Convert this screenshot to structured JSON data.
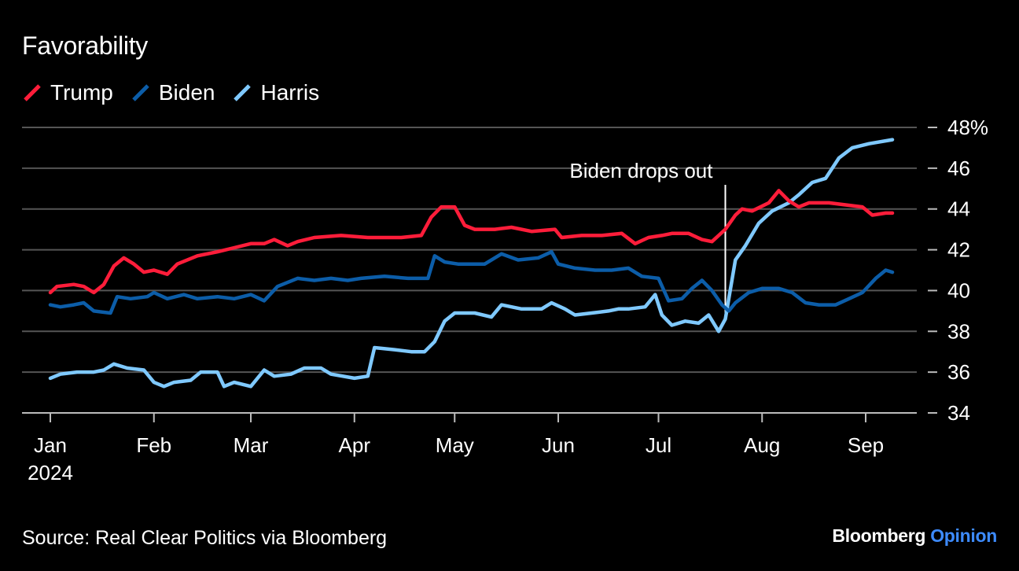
{
  "header": {
    "title": "Favorability"
  },
  "footer": {
    "source": "Source: Real Clear Politics via Bloomberg",
    "brand_main": "Bloomberg",
    "brand_accent": "Opinion"
  },
  "colors": {
    "Trump": "#ff1d3a",
    "Biden": "#0c5da8",
    "Harris": "#7fc9ff",
    "grid": "#555555"
  },
  "chart_data": {
    "type": "line",
    "title": "Favorability",
    "xlabel": "",
    "ylabel": "",
    "ylim": [
      34,
      48
    ],
    "yticks": [
      34,
      36,
      38,
      40,
      42,
      44,
      46,
      48
    ],
    "ytick_labels": [
      "34",
      "36",
      "38",
      "40",
      "42",
      "44",
      "46",
      "48%"
    ],
    "xlim": [
      "2024-01-01",
      "2024-09-20"
    ],
    "xticks": [
      {
        "date": "2024-01-01",
        "label": "Jan",
        "sublabel": "2024"
      },
      {
        "date": "2024-02-01",
        "label": "Feb",
        "sublabel": ""
      },
      {
        "date": "2024-03-01",
        "label": "Mar",
        "sublabel": ""
      },
      {
        "date": "2024-04-01",
        "label": "Apr",
        "sublabel": ""
      },
      {
        "date": "2024-05-01",
        "label": "May",
        "sublabel": ""
      },
      {
        "date": "2024-06-01",
        "label": "Jun",
        "sublabel": ""
      },
      {
        "date": "2024-07-01",
        "label": "Jul",
        "sublabel": ""
      },
      {
        "date": "2024-08-01",
        "label": "Aug",
        "sublabel": ""
      },
      {
        "date": "2024-09-01",
        "label": "Sep",
        "sublabel": ""
      }
    ],
    "grid": true,
    "legend": "top-left",
    "annotation": {
      "date": "2024-07-21",
      "text": "Biden drops out"
    },
    "series": [
      {
        "name": "Trump",
        "points": [
          [
            "2024-01-01",
            39.9
          ],
          [
            "2024-01-03",
            40.2
          ],
          [
            "2024-01-08",
            40.3
          ],
          [
            "2024-01-11",
            40.2
          ],
          [
            "2024-01-14",
            39.9
          ],
          [
            "2024-01-17",
            40.3
          ],
          [
            "2024-01-20",
            41.2
          ],
          [
            "2024-01-23",
            41.6
          ],
          [
            "2024-01-26",
            41.3
          ],
          [
            "2024-01-29",
            40.9
          ],
          [
            "2024-02-01",
            41.0
          ],
          [
            "2024-02-05",
            40.8
          ],
          [
            "2024-02-08",
            41.3
          ],
          [
            "2024-02-14",
            41.7
          ],
          [
            "2024-02-20",
            41.9
          ],
          [
            "2024-02-25",
            42.1
          ],
          [
            "2024-03-01",
            42.3
          ],
          [
            "2024-03-05",
            42.3
          ],
          [
            "2024-03-08",
            42.5
          ],
          [
            "2024-03-12",
            42.2
          ],
          [
            "2024-03-15",
            42.4
          ],
          [
            "2024-03-20",
            42.6
          ],
          [
            "2024-03-28",
            42.7
          ],
          [
            "2024-04-05",
            42.6
          ],
          [
            "2024-04-15",
            42.6
          ],
          [
            "2024-04-21",
            42.7
          ],
          [
            "2024-04-24",
            43.6
          ],
          [
            "2024-04-27",
            44.1
          ],
          [
            "2024-05-01",
            44.1
          ],
          [
            "2024-05-04",
            43.2
          ],
          [
            "2024-05-07",
            43.0
          ],
          [
            "2024-05-13",
            43.0
          ],
          [
            "2024-05-18",
            43.1
          ],
          [
            "2024-05-24",
            42.9
          ],
          [
            "2024-05-31",
            43.0
          ],
          [
            "2024-06-02",
            42.6
          ],
          [
            "2024-06-08",
            42.7
          ],
          [
            "2024-06-14",
            42.7
          ],
          [
            "2024-06-20",
            42.8
          ],
          [
            "2024-06-24",
            42.3
          ],
          [
            "2024-06-28",
            42.6
          ],
          [
            "2024-07-02",
            42.7
          ],
          [
            "2024-07-05",
            42.8
          ],
          [
            "2024-07-10",
            42.8
          ],
          [
            "2024-07-14",
            42.5
          ],
          [
            "2024-07-17",
            42.4
          ],
          [
            "2024-07-21",
            43.0
          ],
          [
            "2024-07-24",
            43.7
          ],
          [
            "2024-07-26",
            44.0
          ],
          [
            "2024-07-29",
            43.9
          ],
          [
            "2024-08-03",
            44.3
          ],
          [
            "2024-08-06",
            44.9
          ],
          [
            "2024-08-09",
            44.4
          ],
          [
            "2024-08-12",
            44.1
          ],
          [
            "2024-08-15",
            44.3
          ],
          [
            "2024-08-21",
            44.3
          ],
          [
            "2024-08-26",
            44.2
          ],
          [
            "2024-08-31",
            44.1
          ],
          [
            "2024-09-03",
            43.7
          ],
          [
            "2024-09-07",
            43.8
          ],
          [
            "2024-09-09",
            43.8
          ]
        ]
      },
      {
        "name": "Biden",
        "points": [
          [
            "2024-01-01",
            39.3
          ],
          [
            "2024-01-04",
            39.2
          ],
          [
            "2024-01-08",
            39.3
          ],
          [
            "2024-01-11",
            39.4
          ],
          [
            "2024-01-14",
            39.0
          ],
          [
            "2024-01-19",
            38.9
          ],
          [
            "2024-01-21",
            39.7
          ],
          [
            "2024-01-25",
            39.6
          ],
          [
            "2024-01-30",
            39.7
          ],
          [
            "2024-02-01",
            39.9
          ],
          [
            "2024-02-05",
            39.6
          ],
          [
            "2024-02-10",
            39.8
          ],
          [
            "2024-02-14",
            39.6
          ],
          [
            "2024-02-20",
            39.7
          ],
          [
            "2024-02-25",
            39.6
          ],
          [
            "2024-03-01",
            39.8
          ],
          [
            "2024-03-05",
            39.5
          ],
          [
            "2024-03-09",
            40.2
          ],
          [
            "2024-03-15",
            40.6
          ],
          [
            "2024-03-20",
            40.5
          ],
          [
            "2024-03-25",
            40.6
          ],
          [
            "2024-03-30",
            40.5
          ],
          [
            "2024-04-03",
            40.6
          ],
          [
            "2024-04-10",
            40.7
          ],
          [
            "2024-04-17",
            40.6
          ],
          [
            "2024-04-23",
            40.6
          ],
          [
            "2024-04-25",
            41.7
          ],
          [
            "2024-04-28",
            41.4
          ],
          [
            "2024-05-02",
            41.3
          ],
          [
            "2024-05-10",
            41.3
          ],
          [
            "2024-05-15",
            41.8
          ],
          [
            "2024-05-20",
            41.5
          ],
          [
            "2024-05-26",
            41.6
          ],
          [
            "2024-05-30",
            41.9
          ],
          [
            "2024-06-01",
            41.3
          ],
          [
            "2024-06-06",
            41.1
          ],
          [
            "2024-06-12",
            41.0
          ],
          [
            "2024-06-17",
            41.0
          ],
          [
            "2024-06-22",
            41.1
          ],
          [
            "2024-06-26",
            40.7
          ],
          [
            "2024-07-01",
            40.6
          ],
          [
            "2024-07-04",
            39.5
          ],
          [
            "2024-07-08",
            39.6
          ],
          [
            "2024-07-11",
            40.1
          ],
          [
            "2024-07-14",
            40.5
          ],
          [
            "2024-07-17",
            40.0
          ],
          [
            "2024-07-20",
            39.3
          ],
          [
            "2024-07-22",
            39.0
          ],
          [
            "2024-07-24",
            39.4
          ],
          [
            "2024-07-28",
            39.9
          ],
          [
            "2024-08-01",
            40.1
          ],
          [
            "2024-08-06",
            40.1
          ],
          [
            "2024-08-10",
            39.9
          ],
          [
            "2024-08-14",
            39.4
          ],
          [
            "2024-08-18",
            39.3
          ],
          [
            "2024-08-23",
            39.3
          ],
          [
            "2024-08-27",
            39.6
          ],
          [
            "2024-08-31",
            39.9
          ],
          [
            "2024-09-04",
            40.6
          ],
          [
            "2024-09-07",
            41.0
          ],
          [
            "2024-09-09",
            40.9
          ]
        ]
      },
      {
        "name": "Harris",
        "points": [
          [
            "2024-01-01",
            35.7
          ],
          [
            "2024-01-04",
            35.9
          ],
          [
            "2024-01-09",
            36.0
          ],
          [
            "2024-01-14",
            36.0
          ],
          [
            "2024-01-17",
            36.1
          ],
          [
            "2024-01-20",
            36.4
          ],
          [
            "2024-01-24",
            36.2
          ],
          [
            "2024-01-29",
            36.1
          ],
          [
            "2024-02-01",
            35.5
          ],
          [
            "2024-02-04",
            35.3
          ],
          [
            "2024-02-07",
            35.5
          ],
          [
            "2024-02-12",
            35.6
          ],
          [
            "2024-02-15",
            36.0
          ],
          [
            "2024-02-20",
            36.0
          ],
          [
            "2024-02-22",
            35.3
          ],
          [
            "2024-02-25",
            35.5
          ],
          [
            "2024-03-01",
            35.3
          ],
          [
            "2024-03-05",
            36.1
          ],
          [
            "2024-03-08",
            35.8
          ],
          [
            "2024-03-13",
            35.9
          ],
          [
            "2024-03-17",
            36.2
          ],
          [
            "2024-03-22",
            36.2
          ],
          [
            "2024-03-25",
            35.9
          ],
          [
            "2024-04-01",
            35.7
          ],
          [
            "2024-04-05",
            35.8
          ],
          [
            "2024-04-07",
            37.2
          ],
          [
            "2024-04-13",
            37.1
          ],
          [
            "2024-04-18",
            37.0
          ],
          [
            "2024-04-22",
            37.0
          ],
          [
            "2024-04-25",
            37.5
          ],
          [
            "2024-04-28",
            38.5
          ],
          [
            "2024-05-01",
            38.9
          ],
          [
            "2024-05-07",
            38.9
          ],
          [
            "2024-05-12",
            38.7
          ],
          [
            "2024-05-15",
            39.3
          ],
          [
            "2024-05-21",
            39.1
          ],
          [
            "2024-05-27",
            39.1
          ],
          [
            "2024-05-30",
            39.4
          ],
          [
            "2024-06-03",
            39.1
          ],
          [
            "2024-06-06",
            38.8
          ],
          [
            "2024-06-11",
            38.9
          ],
          [
            "2024-06-16",
            39.0
          ],
          [
            "2024-06-19",
            39.1
          ],
          [
            "2024-06-22",
            39.1
          ],
          [
            "2024-06-27",
            39.2
          ],
          [
            "2024-06-30",
            39.8
          ],
          [
            "2024-07-02",
            38.8
          ],
          [
            "2024-07-05",
            38.3
          ],
          [
            "2024-07-09",
            38.5
          ],
          [
            "2024-07-13",
            38.4
          ],
          [
            "2024-07-16",
            38.8
          ],
          [
            "2024-07-19",
            38.0
          ],
          [
            "2024-07-21",
            38.6
          ],
          [
            "2024-07-24",
            41.5
          ],
          [
            "2024-07-27",
            42.2
          ],
          [
            "2024-07-31",
            43.3
          ],
          [
            "2024-08-04",
            43.9
          ],
          [
            "2024-08-09",
            44.3
          ],
          [
            "2024-08-12",
            44.7
          ],
          [
            "2024-08-16",
            45.3
          ],
          [
            "2024-08-20",
            45.5
          ],
          [
            "2024-08-24",
            46.5
          ],
          [
            "2024-08-28",
            47.0
          ],
          [
            "2024-09-02",
            47.2
          ],
          [
            "2024-09-09",
            47.4
          ]
        ]
      }
    ]
  }
}
